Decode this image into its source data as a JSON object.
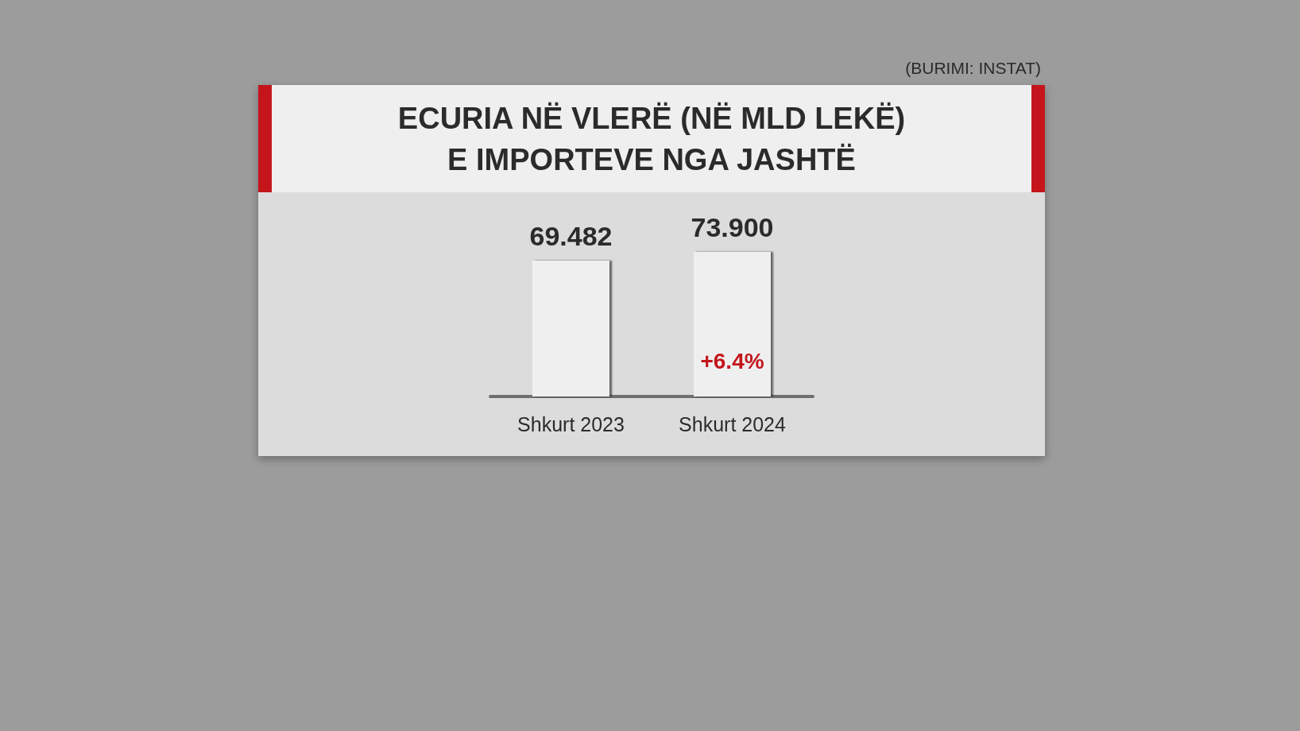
{
  "chart_data": {
    "type": "bar",
    "title": "ECURIA NË VLERË (NË MLD LEKË)\nE IMPORTEVE NGA JASHTË",
    "categories": [
      "Shkurt 2023",
      "Shkurt 2024"
    ],
    "series": [
      {
        "color": "#efefef",
        "values": [
          69.482,
          73.9
        ],
        "value_labels": [
          "69.482",
          "73.900"
        ]
      }
    ],
    "annotations": [
      "(BURIMI: INSTAT)",
      "+6.4%"
    ],
    "grid": false
  }
}
